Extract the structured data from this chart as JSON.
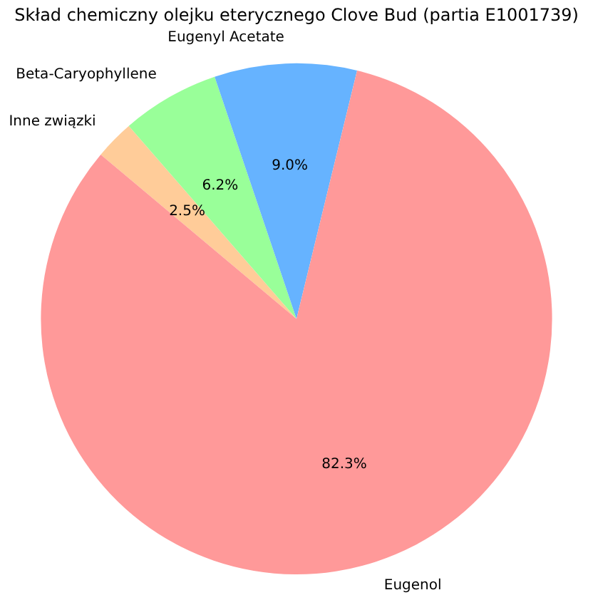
{
  "chart_data": {
    "type": "pie",
    "title": "Skład chemiczny olejku eterycznego Clove Bud (partia E1001739)",
    "categories": [
      "Eugenol",
      "Eugenyl Acetate",
      "Beta-Caryophyllene",
      "Inne związki"
    ],
    "values": [
      82.3,
      9.0,
      6.2,
      2.5
    ],
    "colors": [
      "#ff9999",
      "#66b3ff",
      "#99ff99",
      "#ffcc99"
    ],
    "value_labels": [
      "82.3%",
      "9.0%",
      "6.2%",
      "2.5%"
    ],
    "legend": false
  }
}
